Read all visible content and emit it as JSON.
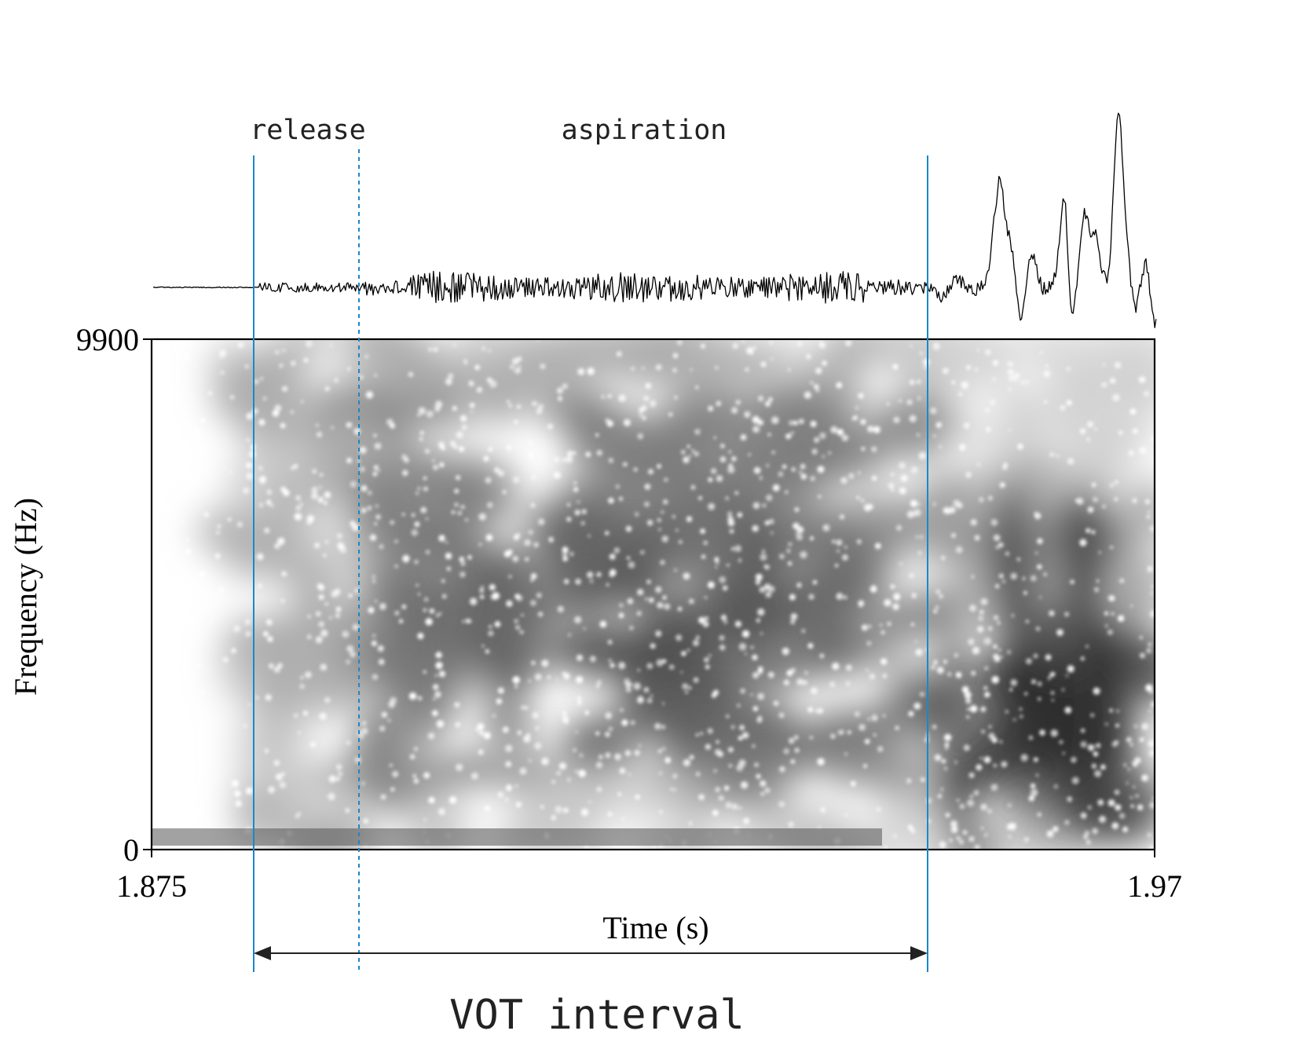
{
  "annotations": {
    "release": "release",
    "aspiration": "aspiration",
    "vot_interval": "VOT interval"
  },
  "axes": {
    "y_label": "Frequency (Hz)",
    "y_max_label": "9900",
    "y_min_label": "0",
    "x_label": "Time (s)",
    "x_min_label": "1.875",
    "x_max_label": "1.97"
  },
  "chart_data": {
    "type": "spectrogram",
    "x_range": [
      1.875,
      1.97
    ],
    "y_range": [
      0,
      9900
    ],
    "x_unit": "s",
    "y_unit": "Hz",
    "colormap": "grayscale",
    "waveform_above": true
  },
  "colors": {
    "marker_line": "#1a88c9",
    "axis": "#000000",
    "waveform": "#000000"
  }
}
